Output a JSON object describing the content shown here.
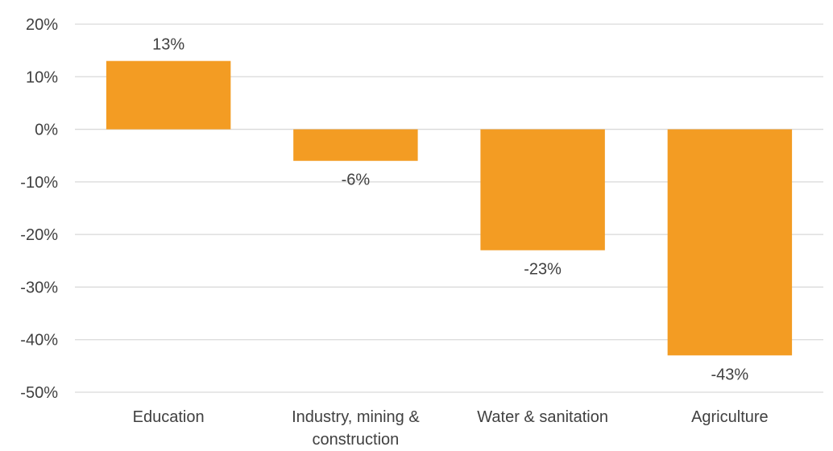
{
  "chart_data": {
    "type": "bar",
    "title": "",
    "xlabel": "",
    "ylabel": "",
    "categories": [
      [
        "Education"
      ],
      [
        "Industry, mining &",
        "construction"
      ],
      [
        "Water & sanitation"
      ],
      [
        "Agriculture"
      ]
    ],
    "values": [
      13,
      -6,
      -23,
      -43
    ],
    "data_labels": [
      "13%",
      "-6%",
      "-23%",
      "-43%"
    ],
    "yticks": [
      20,
      10,
      0,
      -10,
      -20,
      -30,
      -40,
      -50
    ],
    "ytick_labels": [
      "20%",
      "10%",
      "0%",
      "-10%",
      "-20%",
      "-30%",
      "-40%",
      "-50%"
    ],
    "ylim": [
      -50,
      20
    ],
    "grid": true,
    "legend": "none",
    "colors": {
      "bar": "#F39C23",
      "grid": "#D9D9D9",
      "text": "#404040"
    }
  }
}
